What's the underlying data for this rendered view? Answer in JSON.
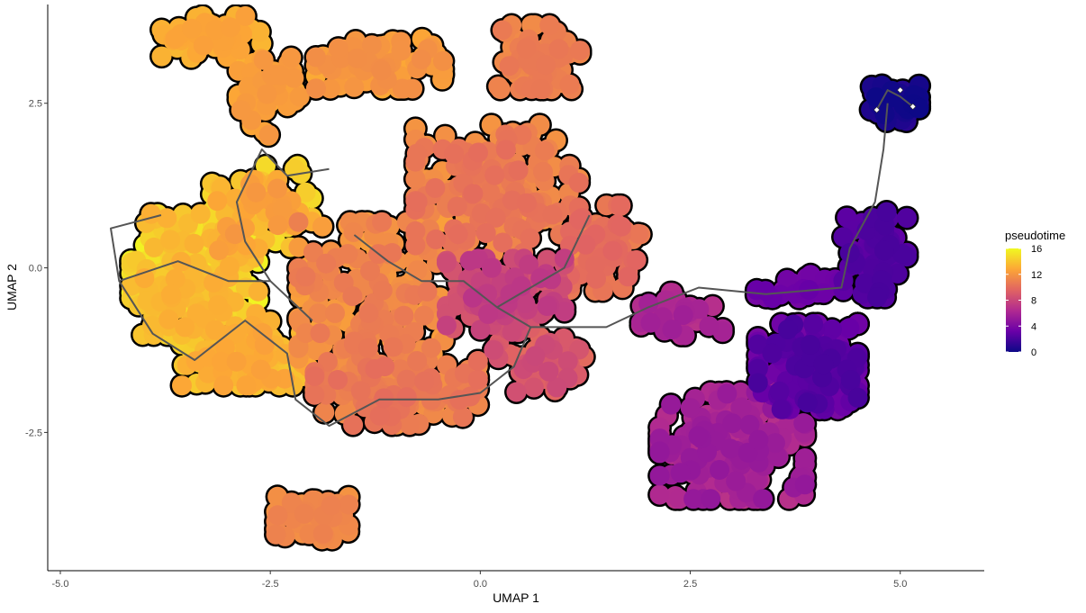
{
  "chart_data": {
    "type": "scatter",
    "title": "",
    "xlabel": "UMAP 1",
    "ylabel": "UMAP 2",
    "xlim": [
      -5.15,
      6.0
    ],
    "ylim": [
      -4.6,
      4.0
    ],
    "x_ticks": [
      -5.0,
      -2.5,
      0.0,
      2.5,
      5.0
    ],
    "x_tick_labels": [
      "-5.0",
      "-2.5",
      "0.0",
      "2.5",
      "5.0"
    ],
    "y_ticks": [
      -2.5,
      0.0,
      2.5
    ],
    "y_tick_labels": [
      "-2.5",
      "0.0",
      "2.5"
    ],
    "grid": false,
    "legend": {
      "title": "pseudotime",
      "placement": "right",
      "min": 0,
      "max": 16,
      "ticks": [
        0,
        4,
        8,
        12,
        16
      ],
      "tick_labels": [
        "0",
        "4",
        "8",
        "12",
        "16"
      ],
      "colors": [
        "#0d0887",
        "#6a00a8",
        "#b12a90",
        "#e16462",
        "#fca636",
        "#f0f921"
      ]
    },
    "point_color": "pseudotime",
    "point_outline": "#000000",
    "trajectory_color": "#555555",
    "root_marker_color": "#ffffff",
    "clusters": [
      {
        "center": [
          -3.4,
          -0.1
        ],
        "spread": [
          0.7,
          0.85
        ],
        "n": 260,
        "pseudotime": [
          13.0,
          16.0
        ]
      },
      {
        "center": [
          -2.6,
          0.9
        ],
        "spread": [
          0.55,
          0.6
        ],
        "n": 90,
        "pseudotime": [
          12.0,
          15.0
        ]
      },
      {
        "center": [
          -2.8,
          -1.3
        ],
        "spread": [
          0.7,
          0.45
        ],
        "n": 110,
        "pseudotime": [
          12.5,
          14.5
        ]
      },
      {
        "center": [
          -1.3,
          -0.6
        ],
        "spread": [
          0.8,
          1.2
        ],
        "n": 220,
        "pseudotime": [
          10.5,
          12.5
        ]
      },
      {
        "center": [
          -1.0,
          -1.9
        ],
        "spread": [
          0.9,
          0.45
        ],
        "n": 140,
        "pseudotime": [
          10.0,
          12.0
        ]
      },
      {
        "center": [
          0.2,
          1.2
        ],
        "spread": [
          0.9,
          0.9
        ],
        "n": 200,
        "pseudotime": [
          10.0,
          12.0
        ]
      },
      {
        "center": [
          0.7,
          3.2
        ],
        "spread": [
          0.45,
          0.45
        ],
        "n": 80,
        "pseudotime": [
          10.5,
          11.5
        ]
      },
      {
        "center": [
          -1.2,
          3.1
        ],
        "spread": [
          0.7,
          0.35
        ],
        "n": 110,
        "pseudotime": [
          11.5,
          13.0
        ]
      },
      {
        "center": [
          -3.2,
          3.5
        ],
        "spread": [
          0.55,
          0.3
        ],
        "n": 60,
        "pseudotime": [
          12.5,
          13.5
        ]
      },
      {
        "center": [
          -2.5,
          2.6
        ],
        "spread": [
          0.35,
          0.55
        ],
        "n": 50,
        "pseudotime": [
          12.0,
          13.0
        ]
      },
      {
        "center": [
          0.3,
          -0.4
        ],
        "spread": [
          0.65,
          0.5
        ],
        "n": 120,
        "pseudotime": [
          7.0,
          9.0
        ]
      },
      {
        "center": [
          0.7,
          -1.4
        ],
        "spread": [
          0.5,
          0.45
        ],
        "n": 60,
        "pseudotime": [
          8.0,
          10.0
        ]
      },
      {
        "center": [
          1.5,
          0.3
        ],
        "spread": [
          0.4,
          0.6
        ],
        "n": 60,
        "pseudotime": [
          9.5,
          11.0
        ]
      },
      {
        "center": [
          3.0,
          -2.7
        ],
        "spread": [
          0.8,
          0.75
        ],
        "n": 200,
        "pseudotime": [
          5.0,
          7.0
        ]
      },
      {
        "center": [
          3.9,
          -1.5
        ],
        "spread": [
          0.55,
          0.6
        ],
        "n": 180,
        "pseudotime": [
          2.0,
          4.0
        ]
      },
      {
        "center": [
          2.4,
          -0.7
        ],
        "spread": [
          0.45,
          0.3
        ],
        "n": 40,
        "pseudotime": [
          5.5,
          7.0
        ]
      },
      {
        "center": [
          4.7,
          0.2
        ],
        "spread": [
          0.35,
          0.6
        ],
        "n": 70,
        "pseudotime": [
          2.0,
          3.0
        ]
      },
      {
        "center": [
          3.8,
          -0.3
        ],
        "spread": [
          0.5,
          0.2
        ],
        "n": 30,
        "pseudotime": [
          3.0,
          4.0
        ]
      },
      {
        "center": [
          4.9,
          2.5
        ],
        "spread": [
          0.3,
          0.25
        ],
        "n": 60,
        "pseudotime": [
          0.0,
          1.0
        ]
      },
      {
        "center": [
          -2.0,
          -3.8
        ],
        "spread": [
          0.4,
          0.3
        ],
        "n": 60,
        "pseudotime": [
          11.0,
          12.0
        ]
      }
    ],
    "trajectory": [
      [
        [
          4.72,
          2.4
        ],
        [
          4.85,
          2.7
        ],
        [
          5.0,
          2.6
        ],
        [
          5.15,
          2.45
        ]
      ],
      [
        [
          4.85,
          2.5
        ],
        [
          4.8,
          1.8
        ],
        [
          4.7,
          1.0
        ],
        [
          4.4,
          0.3
        ],
        [
          4.3,
          -0.3
        ],
        [
          3.4,
          -0.4
        ],
        [
          2.6,
          -0.3
        ],
        [
          2.0,
          -0.6
        ],
        [
          1.5,
          -0.9
        ],
        [
          1.0,
          -0.9
        ],
        [
          0.6,
          -0.9
        ],
        [
          0.2,
          -0.6
        ],
        [
          -0.2,
          -0.2
        ],
        [
          -0.7,
          -0.2
        ],
        [
          -1.1,
          0.1
        ],
        [
          -1.5,
          0.5
        ]
      ],
      [
        [
          0.6,
          -0.9
        ],
        [
          0.4,
          -1.5
        ],
        [
          0.0,
          -1.9
        ],
        [
          -0.5,
          -2.0
        ],
        [
          -1.2,
          -2.0
        ],
        [
          -1.8,
          -2.4
        ],
        [
          -2.2,
          -2.0
        ],
        [
          -2.3,
          -1.3
        ],
        [
          -2.8,
          -0.8
        ],
        [
          -3.4,
          -1.4
        ],
        [
          -3.9,
          -1.0
        ],
        [
          -4.3,
          -0.2
        ],
        [
          -4.4,
          0.6
        ],
        [
          -3.8,
          0.8
        ]
      ],
      [
        [
          0.2,
          -0.6
        ],
        [
          1.0,
          0.0
        ],
        [
          1.3,
          0.8
        ]
      ],
      [
        [
          -2.0,
          -0.8
        ],
        [
          -2.5,
          -0.2
        ],
        [
          -2.8,
          0.4
        ],
        [
          -2.9,
          1.0
        ],
        [
          -2.6,
          1.8
        ],
        [
          -2.3,
          1.4
        ],
        [
          -1.8,
          1.5
        ]
      ],
      [
        [
          -4.3,
          -0.2
        ],
        [
          -3.6,
          0.1
        ],
        [
          -3.0,
          -0.2
        ],
        [
          -2.5,
          -0.2
        ]
      ]
    ],
    "root_nodes": [
      [
        4.72,
        2.4
      ],
      [
        5.0,
        2.7
      ],
      [
        5.15,
        2.45
      ]
    ]
  }
}
